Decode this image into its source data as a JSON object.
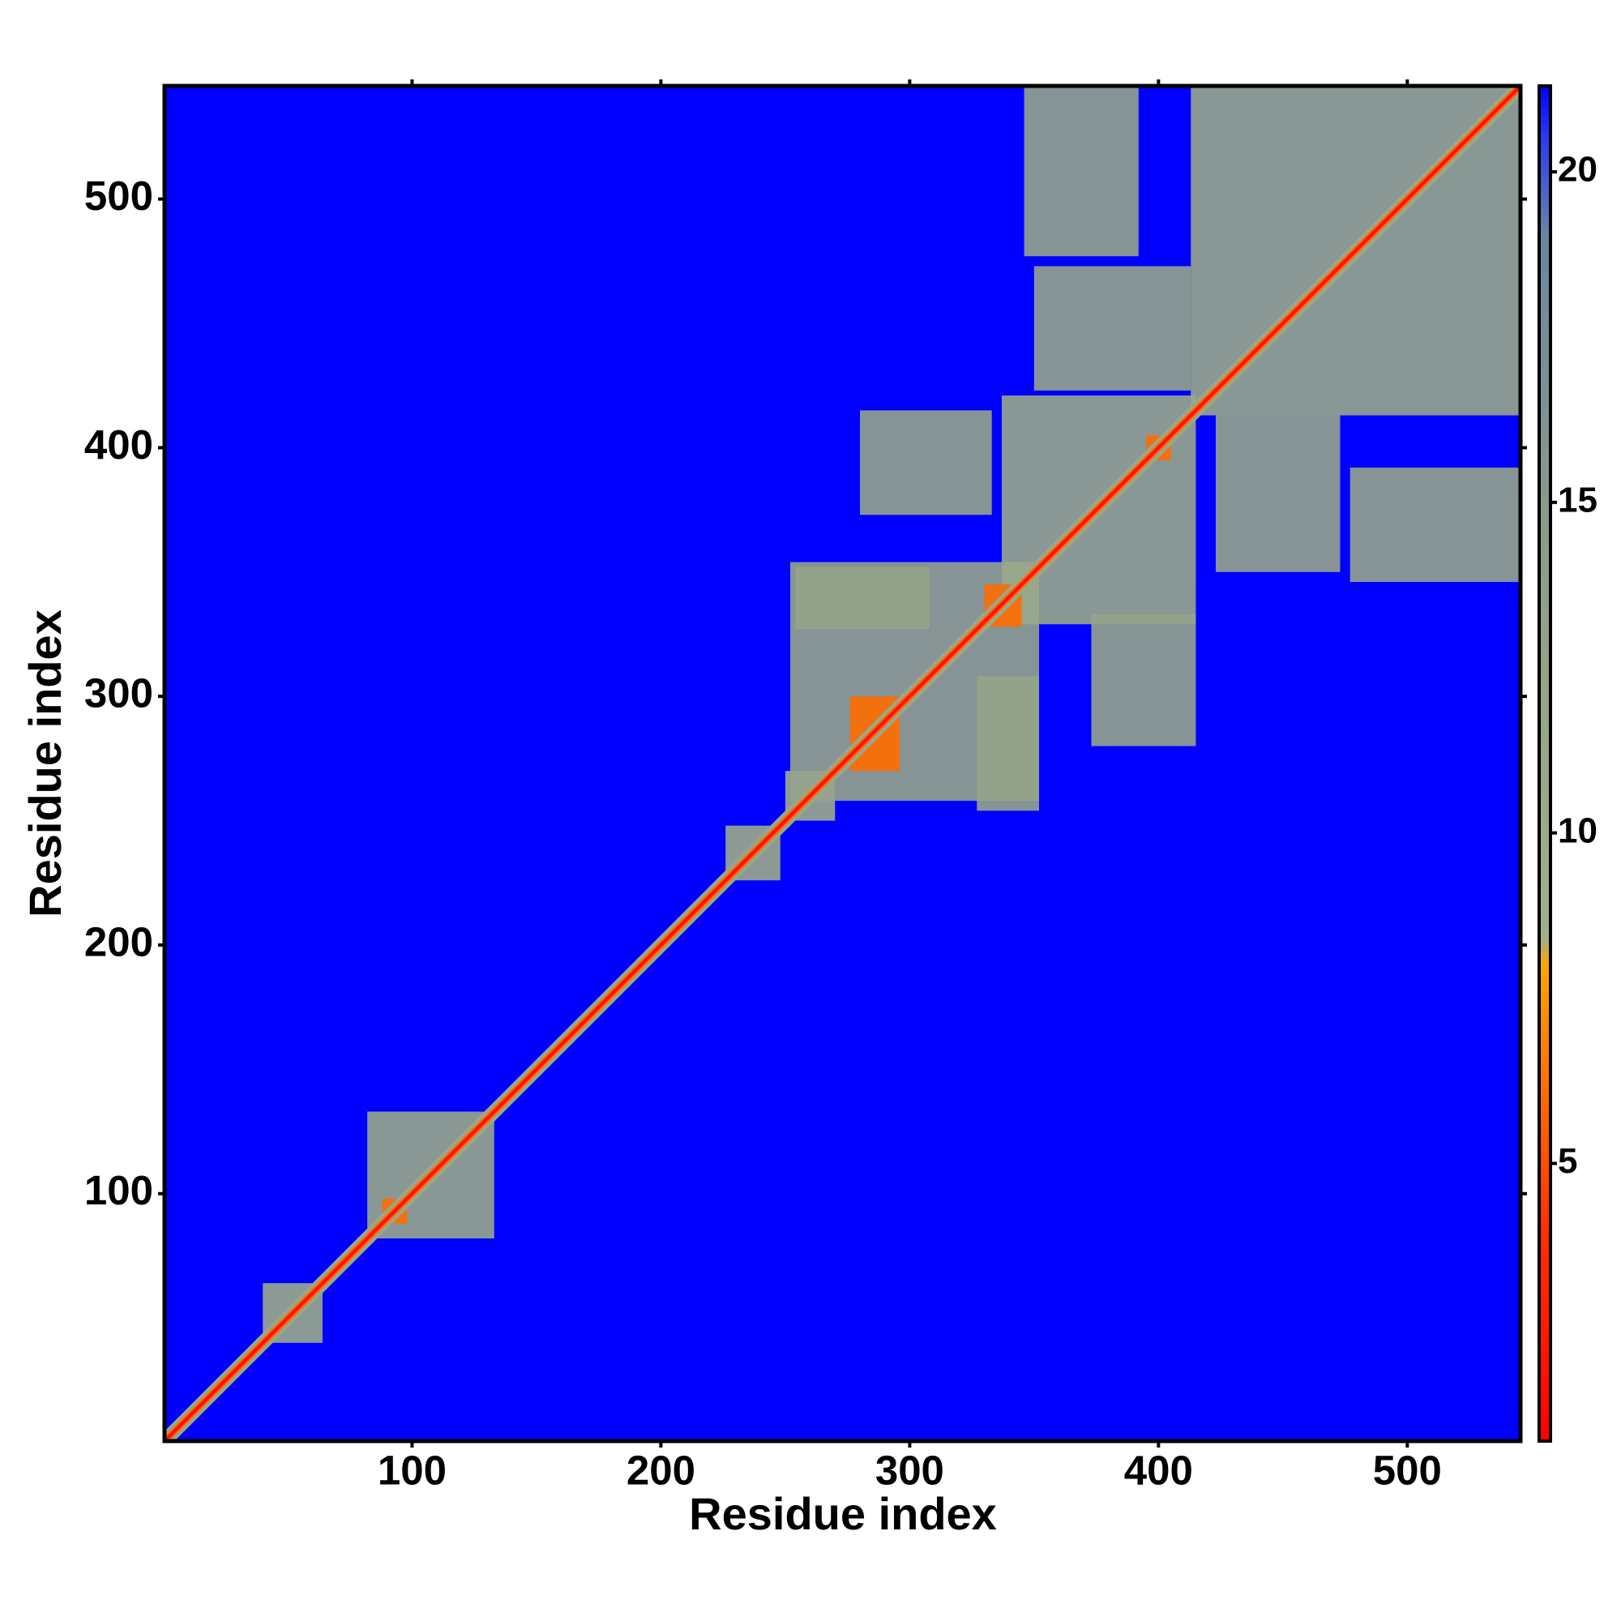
{
  "chart_data": {
    "type": "heatmap",
    "xlabel": "Residue index",
    "ylabel": "Residue index",
    "xlim": [
      0.5,
      545.5
    ],
    "ylim": [
      0.5,
      545.5
    ],
    "xticks": [
      100,
      200,
      300,
      400,
      500
    ],
    "yticks": [
      100,
      200,
      300,
      400,
      500
    ],
    "background": 21.3,
    "diagonal_bands": [
      {
        "value": 11,
        "halfwidth": 4
      },
      {
        "value": 6,
        "halfwidth": 2
      },
      {
        "value": 2,
        "halfwidth": 1
      }
    ],
    "regions": [
      {
        "x": [
          82,
          133
        ],
        "y": [
          82,
          133
        ],
        "value": 11
      },
      {
        "x": [
          40,
          64
        ],
        "y": [
          40,
          64
        ],
        "value": 10
      },
      {
        "x": [
          226,
          248
        ],
        "y": [
          226,
          248
        ],
        "value": 10
      },
      {
        "x": [
          250,
          270
        ],
        "y": [
          250,
          270
        ],
        "value": 10
      },
      {
        "x": [
          252,
          352
        ],
        "y": [
          258,
          354
        ],
        "value": 12
      },
      {
        "x": [
          327,
          352
        ],
        "y": [
          254,
          308
        ],
        "value": 12
      },
      {
        "x": [
          254,
          308
        ],
        "y": [
          327,
          352
        ],
        "value": 12
      },
      {
        "x": [
          337,
          415
        ],
        "y": [
          329,
          421
        ],
        "value": 11
      },
      {
        "x": [
          373,
          415
        ],
        "y": [
          280,
          333
        ],
        "value": 12
      },
      {
        "x": [
          280,
          333
        ],
        "y": [
          373,
          415
        ],
        "value": 12
      },
      {
        "x": [
          477,
          545
        ],
        "y": [
          346,
          392
        ],
        "value": 12
      },
      {
        "x": [
          346,
          392
        ],
        "y": [
          477,
          545
        ],
        "value": 12
      },
      {
        "x": [
          423,
          473
        ],
        "y": [
          350,
          413
        ],
        "value": 12
      },
      {
        "x": [
          350,
          413
        ],
        "y": [
          423,
          473
        ],
        "value": 12
      },
      {
        "x": [
          413,
          545
        ],
        "y": [
          413,
          545
        ],
        "value": 11
      },
      {
        "x": [
          276,
          296
        ],
        "y": [
          270,
          300
        ],
        "value": 6
      },
      {
        "x": [
          330,
          345
        ],
        "y": [
          328,
          345
        ],
        "value": 6
      },
      {
        "x": [
          395,
          405
        ],
        "y": [
          395,
          405
        ],
        "value": 6
      },
      {
        "x": [
          88,
          98
        ],
        "y": [
          88,
          98
        ],
        "value": 6
      }
    ],
    "colorbar": {
      "lim": [
        0.8,
        21.3
      ],
      "ticks": [
        5,
        10,
        15,
        20
      ],
      "colorscale": [
        {
          "value": 0.8,
          "color": "#ff0000"
        },
        {
          "value": 4,
          "color": "#ff3000"
        },
        {
          "value": 8,
          "color": "#ffa500"
        },
        {
          "value": 8.4,
          "color": "#a0b08a"
        },
        {
          "value": 14,
          "color": "#8f9e88"
        },
        {
          "value": 19,
          "color": "#6c86a0"
        },
        {
          "value": 20.5,
          "color": "#2a3cf0"
        },
        {
          "value": 21.3,
          "color": "#0000ff"
        }
      ]
    }
  }
}
